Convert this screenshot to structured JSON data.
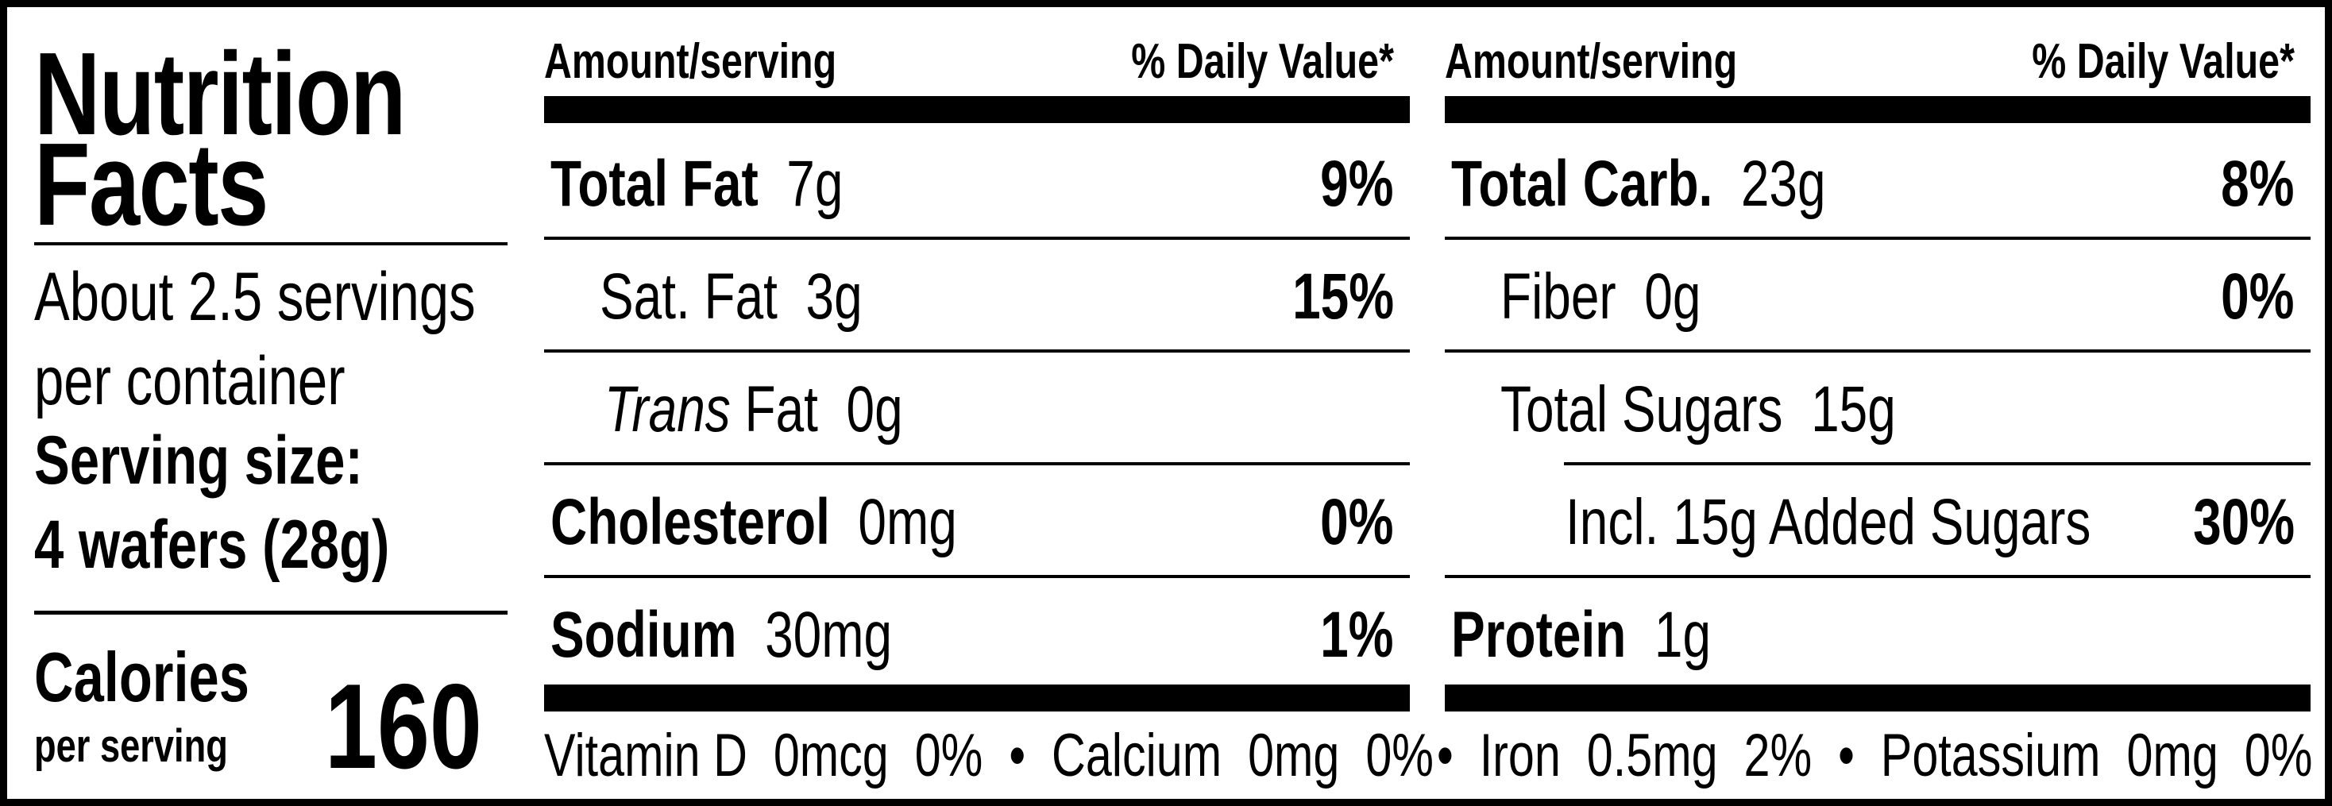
{
  "title": [
    "Nutrition",
    "Facts"
  ],
  "servings": [
    "About 2.5 servings",
    "per container"
  ],
  "serving_size_label": "Serving size:",
  "serving_size_value": "4 wafers (28g)",
  "calories": {
    "label": "Calories",
    "sub": "per serving",
    "value": "160"
  },
  "headers": {
    "amount": "Amount/serving",
    "dv": "% Daily Value*"
  },
  "left_column": [
    {
      "name": "Total Fat",
      "amount": "7g",
      "dv": "9%"
    },
    {
      "name": "Sat. Fat",
      "amount": "3g",
      "dv": "15%"
    },
    {
      "name_italic": "Trans",
      "name": " Fat",
      "amount": "0g",
      "dv": ""
    },
    {
      "name": "Cholesterol",
      "amount": "0mg",
      "dv": "0%"
    },
    {
      "name": "Sodium",
      "amount": "30mg",
      "dv": "1%"
    }
  ],
  "right_column": [
    {
      "name": "Total Carb.",
      "amount": "23g",
      "dv": "8%"
    },
    {
      "name": "Fiber",
      "amount": "0g",
      "dv": "0%"
    },
    {
      "name": "Total Sugars",
      "amount": "15g",
      "dv": ""
    },
    {
      "name": "Incl. 15g Added Sugars",
      "amount": "",
      "dv": "30%"
    },
    {
      "name": "Protein",
      "amount": "1g",
      "dv": ""
    }
  ],
  "vitamins_left": "Vitamin D  0mcg  0%  •  Calcium  0mg  0%",
  "vitamins_right": "•  Iron  0.5mg  2%  •  Potassium  0mg  0%"
}
